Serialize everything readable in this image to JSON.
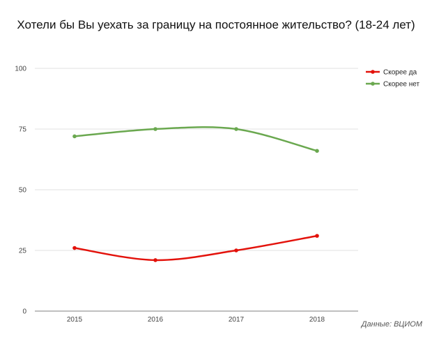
{
  "title": "Хотели бы Вы уехать за границу на постоянное жительство? (18-24 лет)",
  "source": "Данные: ВЦИОМ",
  "chart_data": {
    "type": "line",
    "title": "Хотели бы Вы уехать за границу на постоянное жительство? (18-24 лет)",
    "xlabel": "",
    "ylabel": "",
    "categories": [
      "2015",
      "2016",
      "2017",
      "2018"
    ],
    "ylim": [
      0,
      100
    ],
    "yticks": [
      "0",
      "25",
      "50",
      "75",
      "100"
    ],
    "grid": true,
    "legend_position": "top-right",
    "series": [
      {
        "name": "Скорее да",
        "values": [
          26,
          21,
          25,
          31
        ],
        "color": "#e3120b"
      },
      {
        "name": "Скорее нет",
        "values": [
          72,
          75,
          75,
          66
        ],
        "color": "#6aa84f"
      }
    ]
  }
}
